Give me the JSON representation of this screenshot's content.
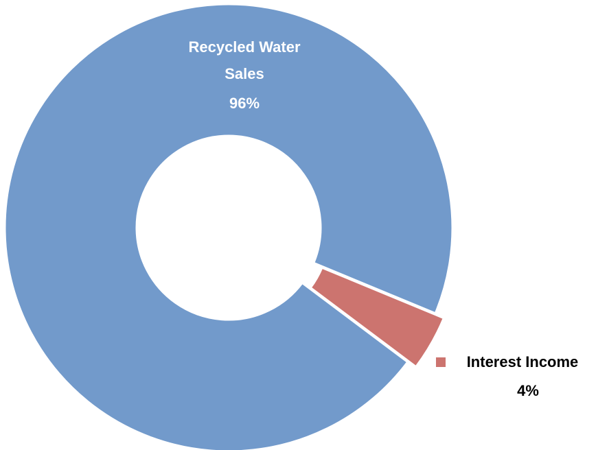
{
  "chart_data": {
    "type": "pie",
    "style": "doughnut",
    "title": "",
    "slices": [
      {
        "name": "Recycled Water Sales",
        "name_lines": [
          "Recycled Water",
          "Sales"
        ],
        "value": 96,
        "label": "96%",
        "color": "#729acb",
        "label_position": "inside"
      },
      {
        "name": "Interest Income",
        "name_lines": [
          "Interest Income"
        ],
        "value": 4,
        "label": "4%",
        "color": "#cc746f",
        "label_position": "outside",
        "exploded": true
      }
    ],
    "legend": "none"
  }
}
